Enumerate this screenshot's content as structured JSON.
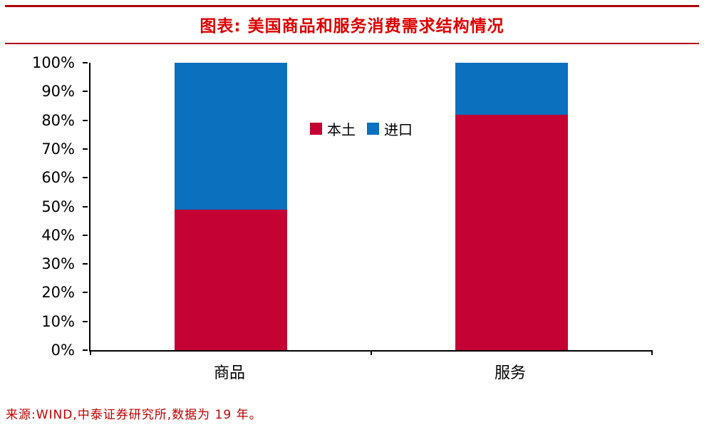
{
  "header": {
    "title": "图表: 美国商品和服务消费需求结构情况"
  },
  "source": "来源:WIND,中泰证券研究所,数据为 19 年。",
  "colors": {
    "rule": "#B00000",
    "title": "#DE0000",
    "source_text": "#C00000",
    "domestic": "#C40233",
    "import": "#0B70BE",
    "axis": "#000000"
  },
  "chart_data": {
    "type": "bar",
    "stacked": true,
    "title": "图表: 美国商品和服务消费需求结构情况",
    "categories": [
      "商品",
      "服务"
    ],
    "series": [
      {
        "name": "本土",
        "values": [
          49,
          82
        ],
        "color": "#C40233"
      },
      {
        "name": "进口",
        "values": [
          51,
          18
        ],
        "color": "#0B70BE"
      }
    ],
    "xlabel": "",
    "ylabel": "",
    "ylim": [
      0,
      100
    ],
    "ytick_step": 10,
    "ytick_suffix": "%",
    "grid": false,
    "legend_position": "inside-plot-upper-left",
    "legend": [
      "本土",
      "进口"
    ]
  }
}
